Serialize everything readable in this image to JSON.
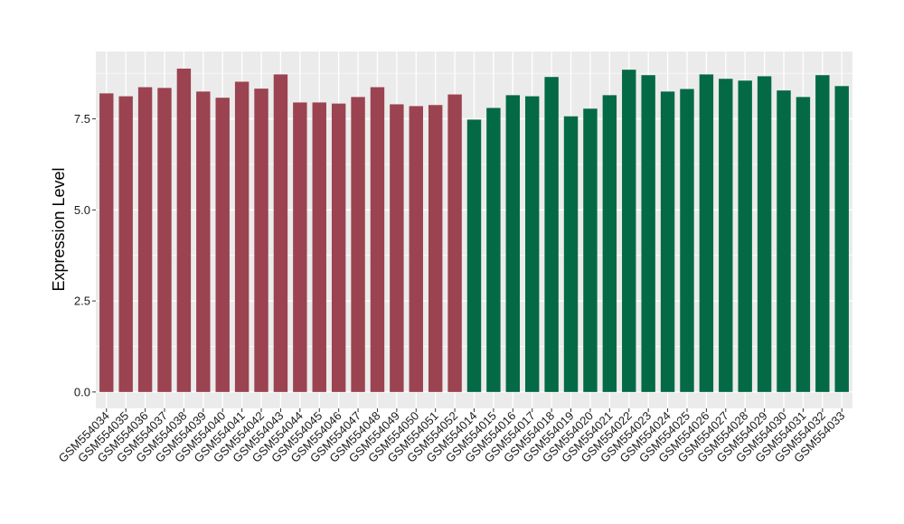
{
  "chart_data": {
    "type": "bar",
    "ylabel": "Expression Level",
    "xlabel": "",
    "ylim": [
      -0.45,
      9.35
    ],
    "yticks": [
      0.0,
      2.5,
      5.0,
      7.5
    ],
    "ytick_labels": [
      "0.0",
      "2.5",
      "5.0",
      "7.5"
    ],
    "grid": true,
    "legend": "none",
    "colors": {
      "group1": "#9b4350",
      "group2": "#036a45",
      "panel": "#ebebeb",
      "grid": "#ffffff"
    },
    "categories": [
      "GSM554034",
      "GSM554035",
      "GSM554036",
      "GSM554037",
      "GSM554038",
      "GSM554039",
      "GSM554040",
      "GSM554041",
      "GSM554042",
      "GSM554043",
      "GSM554044",
      "GSM554045",
      "GSM554046",
      "GSM554047",
      "GSM554048",
      "GSM554049",
      "GSM554050",
      "GSM554051",
      "GSM554052",
      "GSM554014",
      "GSM554015",
      "GSM554016",
      "GSM554017",
      "GSM554018",
      "GSM554019",
      "GSM554020",
      "GSM554021",
      "GSM554022",
      "GSM554023",
      "GSM554024",
      "GSM554025",
      "GSM554026",
      "GSM554027",
      "GSM554028",
      "GSM554029",
      "GSM554030",
      "GSM554031",
      "GSM554032",
      "GSM554033"
    ],
    "values": [
      8.2,
      8.12,
      8.37,
      8.35,
      8.88,
      8.25,
      8.08,
      8.52,
      8.33,
      8.72,
      7.95,
      7.95,
      7.92,
      8.1,
      8.37,
      7.9,
      7.85,
      7.88,
      8.17,
      7.48,
      7.8,
      8.15,
      8.12,
      8.65,
      7.57,
      7.78,
      8.15,
      8.85,
      8.7,
      8.25,
      8.32,
      8.72,
      8.6,
      8.55,
      8.67,
      8.28,
      8.1,
      8.7,
      8.4
    ],
    "group_of_bar": [
      "group1",
      "group1",
      "group1",
      "group1",
      "group1",
      "group1",
      "group1",
      "group1",
      "group1",
      "group1",
      "group1",
      "group1",
      "group1",
      "group1",
      "group1",
      "group1",
      "group1",
      "group1",
      "group1",
      "group2",
      "group2",
      "group2",
      "group2",
      "group2",
      "group2",
      "group2",
      "group2",
      "group2",
      "group2",
      "group2",
      "group2",
      "group2",
      "group2",
      "group2",
      "group2",
      "group2",
      "group2",
      "group2",
      "group2"
    ]
  }
}
